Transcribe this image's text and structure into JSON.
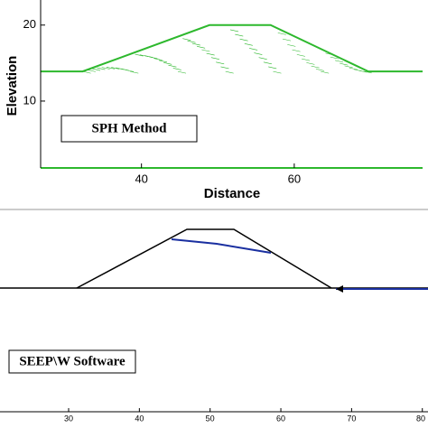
{
  "chart_data": [
    {
      "type": "line",
      "x_label": "Distance",
      "y_label": "Elevation",
      "annotation": "SPH Method",
      "x": [
        26.8,
        32.3,
        48.9,
        56.9,
        69.7,
        76.8
      ],
      "values": [
        13.9,
        13.9,
        20,
        20,
        13.9,
        13.9
      ],
      "color": "#2db82d",
      "xlim": [
        26.8,
        76.8
      ],
      "ylim": [
        1.2,
        23.3
      ],
      "xticks": [
        40,
        60
      ],
      "yticks": [
        10,
        20
      ]
    },
    {
      "type": "axis",
      "annotation": "SEEP\\W Software",
      "xlim": [
        20.3,
        80.8
      ],
      "xticks": [
        30,
        40,
        50,
        60,
        70,
        80
      ]
    }
  ]
}
